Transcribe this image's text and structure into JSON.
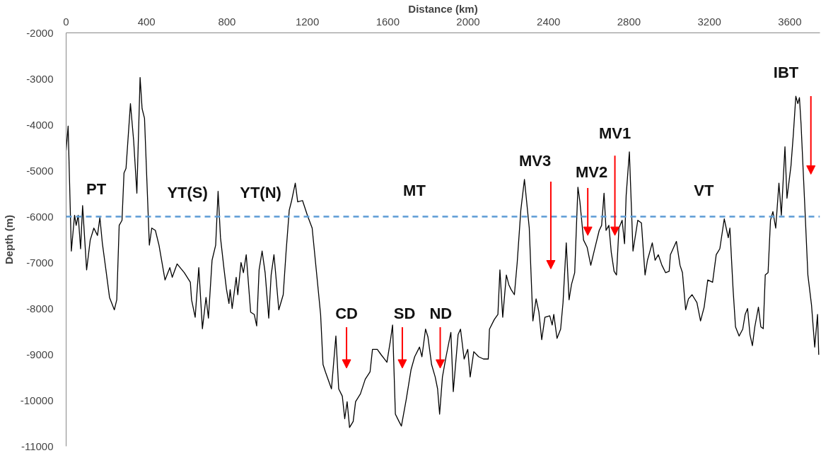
{
  "chart_data": {
    "type": "line",
    "xlabel": "Distance (km)",
    "ylabel": "Depth (m)",
    "xlim": [
      0,
      3750
    ],
    "xticks": [
      0,
      400,
      800,
      1200,
      1600,
      2000,
      2400,
      2800,
      3200,
      3600
    ],
    "ylim": [
      -11000,
      -2000
    ],
    "yticks": [
      -2000,
      -3000,
      -4000,
      -5000,
      -6000,
      -7000,
      -8000,
      -9000,
      -10000,
      -11000
    ],
    "grid": false,
    "marker": "none",
    "line_style": "solid",
    "series": [
      {
        "color": "#000000",
        "x": [
          0,
          10,
          26,
          42,
          50,
          60,
          72,
          82,
          102,
          120,
          138,
          156,
          168,
          180,
          198,
          216,
          240,
          252,
          264,
          278,
          288,
          298,
          320,
          336,
          352,
          368,
          378,
          390,
          414,
          426,
          444,
          462,
          492,
          516,
          528,
          552,
          588,
          618,
          624,
          642,
          660,
          678,
          696,
          708,
          726,
          744,
          756,
          768,
          786,
          798,
          810,
          816,
          826,
          846,
          854,
          870,
          882,
          896,
          918,
          936,
          948,
          960,
          975,
          990,
          1008,
          1020,
          1034,
          1044,
          1058,
          1080,
          1094,
          1110,
          1122,
          1140,
          1152,
          1176,
          1200,
          1224,
          1248,
          1266,
          1278,
          1290,
          1320,
          1342,
          1356,
          1374,
          1386,
          1398,
          1410,
          1428,
          1440,
          1464,
          1488,
          1512,
          1524,
          1548,
          1566,
          1596,
          1614,
          1624,
          1638,
          1656,
          1668,
          1692,
          1716,
          1734,
          1758,
          1770,
          1788,
          1800,
          1818,
          1836,
          1848,
          1858,
          1872,
          1890,
          1914,
          1926,
          1950,
          1962,
          1980,
          1998,
          2010,
          2028,
          2052,
          2076,
          2100,
          2106,
          2130,
          2148,
          2158,
          2172,
          2190,
          2202,
          2214,
          2230,
          2244,
          2262,
          2280,
          2304,
          2322,
          2338,
          2352,
          2366,
          2382,
          2406,
          2418,
          2426,
          2442,
          2460,
          2472,
          2488,
          2502,
          2514,
          2530,
          2546,
          2556,
          2574,
          2592,
          2610,
          2628,
          2652,
          2664,
          2676,
          2686,
          2700,
          2712,
          2726,
          2738,
          2750,
          2766,
          2778,
          2786,
          2802,
          2820,
          2844,
          2862,
          2880,
          2892,
          2916,
          2930,
          2946,
          2964,
          2982,
          3000,
          3006,
          3036,
          3054,
          3066,
          3082,
          3096,
          3114,
          3138,
          3156,
          3174,
          3192,
          3216,
          3234,
          3252,
          3274,
          3294,
          3302,
          3318,
          3330,
          3348,
          3366,
          3378,
          3390,
          3402,
          3414,
          3426,
          3444,
          3456,
          3468,
          3478,
          3492,
          3504,
          3516,
          3530,
          3546,
          3558,
          3576,
          3586,
          3606,
          3618,
          3630,
          3640,
          3648,
          3656,
          3674,
          3690,
          3708,
          3724,
          3738,
          3744
        ],
        "values": [
          -4560,
          -4030,
          -6750,
          -5970,
          -6190,
          -5970,
          -6700,
          -5760,
          -7160,
          -6510,
          -6250,
          -6410,
          -6020,
          -6570,
          -7160,
          -7760,
          -8030,
          -7810,
          -6190,
          -6080,
          -5050,
          -4950,
          -3540,
          -4350,
          -5490,
          -2970,
          -3650,
          -3860,
          -6620,
          -6250,
          -6300,
          -6620,
          -7380,
          -7110,
          -7320,
          -7030,
          -7220,
          -7430,
          -7810,
          -8190,
          -7110,
          -8440,
          -7760,
          -8210,
          -6950,
          -6620,
          -5450,
          -6460,
          -7160,
          -7590,
          -7890,
          -7590,
          -8000,
          -7320,
          -7700,
          -7000,
          -7220,
          -6830,
          -8080,
          -8130,
          -8380,
          -7160,
          -6750,
          -7220,
          -8210,
          -7270,
          -6830,
          -7320,
          -8030,
          -7700,
          -6780,
          -5860,
          -5650,
          -5270,
          -5680,
          -5650,
          -5970,
          -6250,
          -7320,
          -8130,
          -9220,
          -9380,
          -9750,
          -8600,
          -9750,
          -9910,
          -10400,
          -10030,
          -10590,
          -10460,
          -10030,
          -9860,
          -9540,
          -9380,
          -8890,
          -8890,
          -9000,
          -9170,
          -8680,
          -8360,
          -10300,
          -10460,
          -10560,
          -9980,
          -9330,
          -9050,
          -8840,
          -9050,
          -8450,
          -8620,
          -9220,
          -9490,
          -9750,
          -10300,
          -9490,
          -9050,
          -8520,
          -9810,
          -8570,
          -8450,
          -9100,
          -8890,
          -9490,
          -8940,
          -9050,
          -9100,
          -9100,
          -8450,
          -8240,
          -8130,
          -7160,
          -8190,
          -7270,
          -7480,
          -7590,
          -7700,
          -7000,
          -5860,
          -5190,
          -6250,
          -8270,
          -7790,
          -8080,
          -8680,
          -8190,
          -8160,
          -8360,
          -8130,
          -8650,
          -8450,
          -7870,
          -6570,
          -7810,
          -7480,
          -7220,
          -5360,
          -5680,
          -6510,
          -6670,
          -7060,
          -6730,
          -6300,
          -6190,
          -5490,
          -6300,
          -6190,
          -6780,
          -7190,
          -7270,
          -6250,
          -6080,
          -6590,
          -5540,
          -4590,
          -6750,
          -6080,
          -6140,
          -7270,
          -6950,
          -6570,
          -6950,
          -6830,
          -7060,
          -7220,
          -7190,
          -6830,
          -6540,
          -7060,
          -7220,
          -8030,
          -7790,
          -7700,
          -7870,
          -8270,
          -7970,
          -7380,
          -7430,
          -6830,
          -6700,
          -6050,
          -6460,
          -6250,
          -7590,
          -8400,
          -8600,
          -8450,
          -8130,
          -8000,
          -8570,
          -8810,
          -8400,
          -7970,
          -8400,
          -8440,
          -7270,
          -7220,
          -6080,
          -5890,
          -6250,
          -5270,
          -5970,
          -4480,
          -5600,
          -4890,
          -4190,
          -3380,
          -3540,
          -3410,
          -3980,
          -5700,
          -7270,
          -7920,
          -8840,
          -8130,
          -9000
        ]
      }
    ],
    "ref_lines": [
      {
        "axis": "y",
        "value": -6000,
        "color": "#5b9bd5",
        "line_style": "dashed"
      }
    ],
    "annotations": [
      "PT",
      "YT(S)",
      "YT(N)",
      "MT",
      "CD",
      "SD",
      {
        "text": "ND",
        "x": 1861,
        "y": -9300
      },
      "MV3",
      "MV2",
      "MV1",
      "VT",
      "IBT"
    ]
  }
}
